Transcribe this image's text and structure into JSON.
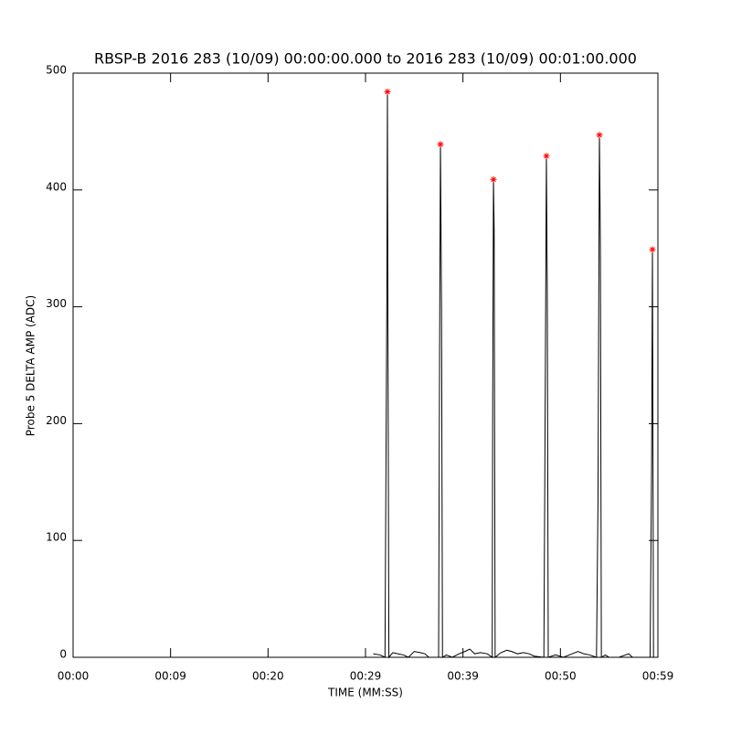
{
  "chart_data": {
    "type": "line",
    "title": "RBSP-B 2016 283 (10/09) 00:00:00.000 to 2016 283 (10/09) 00:01:00.000",
    "x_label": "TIME (MM:SS)",
    "y_label": "Probe 5 DELTA AMP (ADC)",
    "xlim": [
      0,
      60
    ],
    "xticks": [
      {
        "value": 0,
        "label": "00:00"
      },
      {
        "value": 10,
        "label": "00:09"
      },
      {
        "value": 20,
        "label": "00:20"
      },
      {
        "value": 30,
        "label": "00:29"
      },
      {
        "value": 40,
        "label": "00:39"
      },
      {
        "value": 50,
        "label": "00:50"
      },
      {
        "value": 60,
        "label": "00:59"
      }
    ],
    "ylim": [
      0,
      500
    ],
    "yticks": [
      0,
      100,
      200,
      300,
      400,
      500
    ],
    "grid": false,
    "series": [
      {
        "color": "#000000",
        "marker": "none",
        "x": [
          30.8,
          31.5,
          32.0,
          32.2,
          32.25,
          32.3,
          32.4,
          32.8,
          33.3,
          33.9,
          34.4,
          35.0,
          35.6,
          36.1,
          36.5,
          37.5,
          37.6,
          37.69,
          37.8,
          37.9,
          38.3,
          38.9,
          39.6,
          40.2,
          40.7,
          41.2,
          41.8,
          42.5,
          43.0,
          43.05,
          43.13,
          43.2,
          43.3,
          43.9,
          44.5,
          45.0,
          45.6,
          46.2,
          46.8,
          47.3,
          48.3,
          48.45,
          48.56,
          48.65,
          48.75,
          49.5,
          50.3,
          51.2,
          51.8,
          52.4,
          53.0,
          53.7,
          53.85,
          54.0,
          54.1,
          54.2,
          54.6,
          55.0,
          56.0,
          57.0,
          57.4,
          58.4,
          59.2,
          59.35,
          59.44,
          59.55
        ],
        "values": [
          3,
          2,
          0,
          325,
          484,
          290,
          0,
          4,
          3,
          2,
          0,
          5,
          4,
          3,
          0,
          0,
          260,
          439,
          300,
          0,
          2,
          0,
          3,
          5,
          7,
          3,
          4,
          3,
          0,
          215,
          409,
          365,
          0,
          4,
          6,
          5,
          3,
          4,
          3,
          1,
          0,
          240,
          429,
          315,
          0,
          2,
          0,
          3,
          5,
          3,
          2,
          0,
          130,
          447,
          352,
          0,
          2,
          0,
          0,
          3,
          0,
          0,
          0,
          160,
          349,
          0
        ]
      },
      {
        "color": "#ff0000",
        "marker": "asterisk",
        "x": [
          32.25,
          37.69,
          43.13,
          48.56,
          54.0,
          59.44
        ],
        "values": [
          484,
          439,
          409,
          429,
          447,
          349
        ]
      }
    ]
  }
}
